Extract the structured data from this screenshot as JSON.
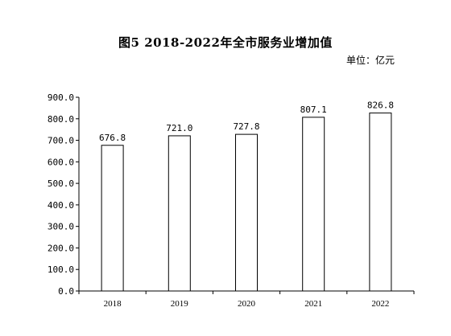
{
  "chart_data": {
    "type": "bar",
    "title": "图5  2018-2022年全市服务业增加值",
    "unit": "单位：亿元",
    "categories": [
      "2018",
      "2019",
      "2020",
      "2021",
      "2022"
    ],
    "values": [
      676.8,
      721.0,
      727.8,
      807.1,
      826.8
    ],
    "value_labels": [
      "676.8",
      "721.0",
      "727.8",
      "807.1",
      "826.8"
    ],
    "ylim": [
      0,
      900
    ],
    "yticks": [
      0,
      100,
      200,
      300,
      400,
      500,
      600,
      700,
      800,
      900
    ],
    "ytick_labels": [
      "0.0",
      "100.0",
      "200.0",
      "300.0",
      "400.0",
      "500.0",
      "600.0",
      "700.0",
      "800.0",
      "900.0"
    ],
    "grid": false,
    "legend": "none",
    "colors": {
      "bar_fill": "#ffffff",
      "bar_stroke": "#000000",
      "axis": "#000000"
    }
  }
}
